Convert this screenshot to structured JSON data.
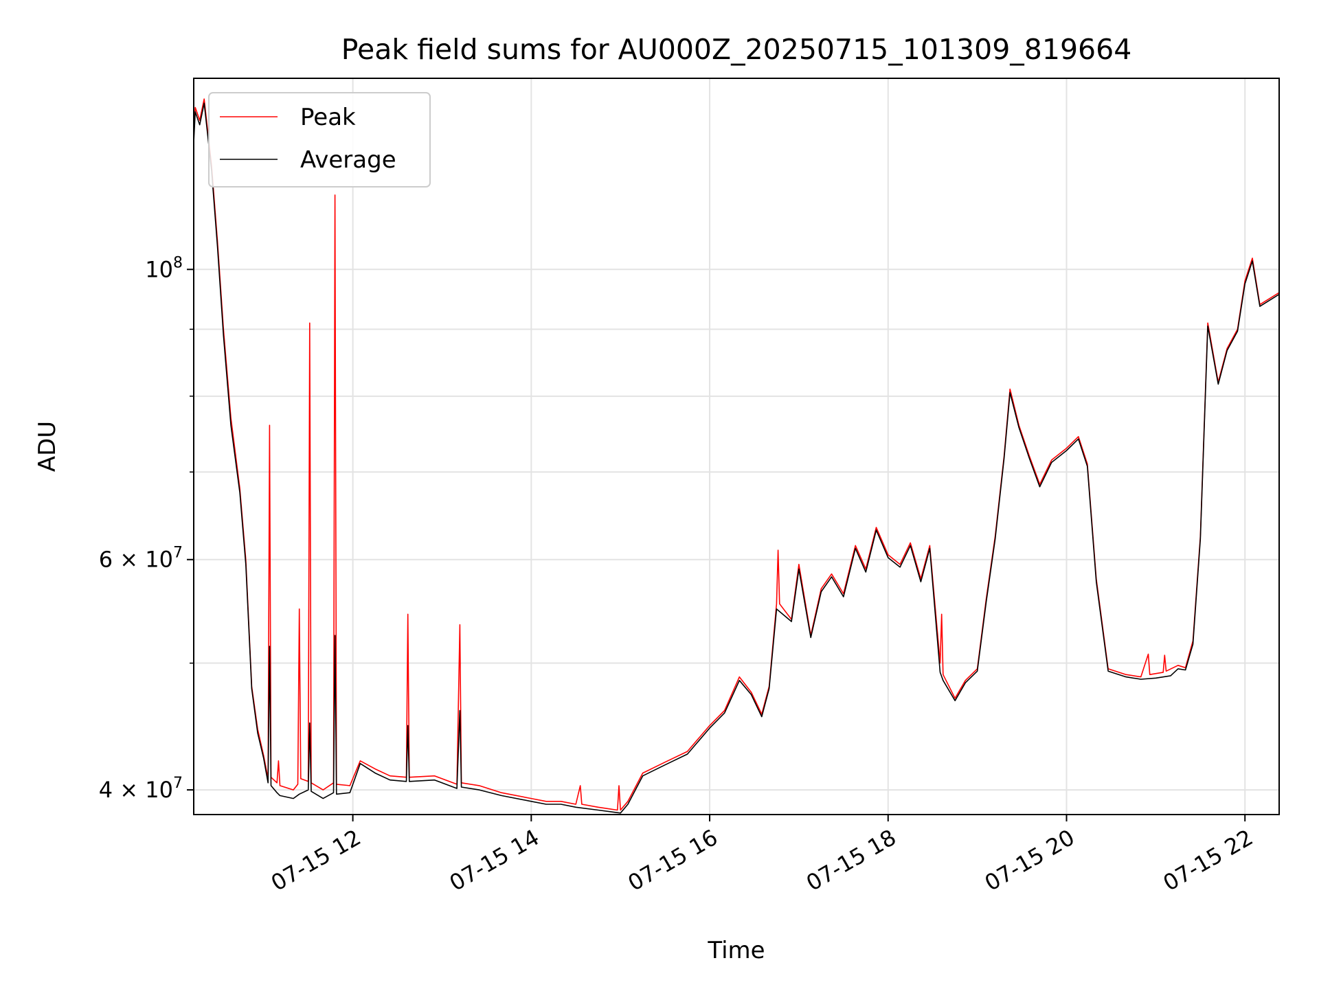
{
  "chart_data": {
    "type": "line",
    "title": "Peak field sums for AU000Z_20250715_101309_819664",
    "xlabel": "Time",
    "ylabel": "ADU",
    "y_scale": "log",
    "ylim": [
      38300000,
      140000000
    ],
    "x_range": [
      "2025-07-15 10:13",
      "2025-07-15 22:23"
    ],
    "x_ticks": [
      {
        "label": "07-15 12",
        "value": "2025-07-15 12:00"
      },
      {
        "label": "07-15 14",
        "value": "2025-07-15 14:00"
      },
      {
        "label": "07-15 16",
        "value": "2025-07-15 16:00"
      },
      {
        "label": "07-15 18",
        "value": "2025-07-15 18:00"
      },
      {
        "label": "07-15 20",
        "value": "2025-07-15 20:00"
      },
      {
        "label": "07-15 22",
        "value": "2025-07-15 22:00"
      }
    ],
    "y_major_ticks": [
      {
        "label_base": "4 × 10",
        "label_exp": "7",
        "value": 40000000
      },
      {
        "label_base": "6 × 10",
        "label_exp": "7",
        "value": 60000000
      },
      {
        "label_base": "10",
        "label_exp": "8",
        "value": 100000000
      }
    ],
    "y_minor_ticks": [
      50000000,
      70000000,
      80000000,
      90000000
    ],
    "grid": true,
    "legend_position": "top-left",
    "series": [
      {
        "name": "Peak",
        "color": "#ff0000",
        "points": [
          [
            "2025-07-15 10:13",
            126000000
          ],
          [
            "2025-07-15 10:14",
            133000000
          ],
          [
            "2025-07-15 10:17",
            130000000
          ],
          [
            "2025-07-15 10:20",
            135000000
          ],
          [
            "2025-07-15 10:25",
            120000000
          ],
          [
            "2025-07-15 10:29",
            105000000
          ],
          [
            "2025-07-15 10:33",
            90000000
          ],
          [
            "2025-07-15 10:38",
            77000000
          ],
          [
            "2025-07-15 10:44",
            68000000
          ],
          [
            "2025-07-15 10:48",
            60000000
          ],
          [
            "2025-07-15 10:52",
            48000000
          ],
          [
            "2025-07-15 10:56",
            44500000
          ],
          [
            "2025-07-15 11:00",
            42500000
          ],
          [
            "2025-07-15 11:03",
            40800000
          ],
          [
            "2025-07-15 11:04",
            76000000
          ],
          [
            "2025-07-15 11:05",
            40900000
          ],
          [
            "2025-07-15 11:09",
            40500000
          ],
          [
            "2025-07-15 11:10",
            42100000
          ],
          [
            "2025-07-15 11:11",
            40300000
          ],
          [
            "2025-07-15 11:20",
            40000000
          ],
          [
            "2025-07-15 11:23",
            40400000
          ],
          [
            "2025-07-15 11:24",
            55000000
          ],
          [
            "2025-07-15 11:25",
            40800000
          ],
          [
            "2025-07-15 11:30",
            40600000
          ],
          [
            "2025-07-15 11:31",
            91000000
          ],
          [
            "2025-07-15 11:32",
            40500000
          ],
          [
            "2025-07-15 11:40",
            40000000
          ],
          [
            "2025-07-15 11:47",
            40500000
          ],
          [
            "2025-07-15 11:48",
            114000000
          ],
          [
            "2025-07-15 11:49",
            40400000
          ],
          [
            "2025-07-15 11:58",
            40300000
          ],
          [
            "2025-07-15 12:05",
            42100000
          ],
          [
            "2025-07-15 12:15",
            41500000
          ],
          [
            "2025-07-15 12:25",
            41000000
          ],
          [
            "2025-07-15 12:36",
            40900000
          ],
          [
            "2025-07-15 12:37",
            54500000
          ],
          [
            "2025-07-15 12:38",
            40900000
          ],
          [
            "2025-07-15 12:55",
            41000000
          ],
          [
            "2025-07-15 13:10",
            40400000
          ],
          [
            "2025-07-15 13:12",
            53500000
          ],
          [
            "2025-07-15 13:13",
            40500000
          ],
          [
            "2025-07-15 13:25",
            40300000
          ],
          [
            "2025-07-15 13:40",
            39800000
          ],
          [
            "2025-07-15 14:00",
            39400000
          ],
          [
            "2025-07-15 14:10",
            39200000
          ],
          [
            "2025-07-15 14:20",
            39200000
          ],
          [
            "2025-07-15 14:30",
            39000000
          ],
          [
            "2025-07-15 14:33",
            40300000
          ],
          [
            "2025-07-15 14:34",
            39000000
          ],
          [
            "2025-07-15 14:45",
            38800000
          ],
          [
            "2025-07-15 14:58",
            38600000
          ],
          [
            "2025-07-15 14:59",
            40300000
          ],
          [
            "2025-07-15 15:00",
            38600000
          ],
          [
            "2025-07-15 15:05",
            39200000
          ],
          [
            "2025-07-15 15:15",
            41200000
          ],
          [
            "2025-07-15 15:30",
            42000000
          ],
          [
            "2025-07-15 15:45",
            42800000
          ],
          [
            "2025-07-15 16:00",
            44800000
          ],
          [
            "2025-07-15 16:10",
            46000000
          ],
          [
            "2025-07-15 16:20",
            48800000
          ],
          [
            "2025-07-15 16:28",
            47500000
          ],
          [
            "2025-07-15 16:35",
            45700000
          ],
          [
            "2025-07-15 16:40",
            48000000
          ],
          [
            "2025-07-15 16:45",
            55500000
          ],
          [
            "2025-07-15 16:46",
            61000000
          ],
          [
            "2025-07-15 16:47",
            55500000
          ],
          [
            "2025-07-15 16:55",
            54000000
          ],
          [
            "2025-07-15 17:00",
            59500000
          ],
          [
            "2025-07-15 17:08",
            52500000
          ],
          [
            "2025-07-15 17:15",
            57000000
          ],
          [
            "2025-07-15 17:22",
            58500000
          ],
          [
            "2025-07-15 17:30",
            56500000
          ],
          [
            "2025-07-15 17:38",
            61500000
          ],
          [
            "2025-07-15 17:45",
            59000000
          ],
          [
            "2025-07-15 17:52",
            63500000
          ],
          [
            "2025-07-15 18:00",
            60500000
          ],
          [
            "2025-07-15 18:08",
            59500000
          ],
          [
            "2025-07-15 18:15",
            61800000
          ],
          [
            "2025-07-15 18:22",
            58000000
          ],
          [
            "2025-07-15 18:28",
            61500000
          ],
          [
            "2025-07-15 18:35",
            50000000
          ],
          [
            "2025-07-15 18:36",
            54500000
          ],
          [
            "2025-07-15 18:37",
            49000000
          ],
          [
            "2025-07-15 18:45",
            47000000
          ],
          [
            "2025-07-15 18:52",
            48500000
          ],
          [
            "2025-07-15 19:00",
            49500000
          ],
          [
            "2025-07-15 19:06",
            56000000
          ],
          [
            "2025-07-15 19:12",
            62500000
          ],
          [
            "2025-07-15 19:18",
            72000000
          ],
          [
            "2025-07-15 19:22",
            81000000
          ],
          [
            "2025-07-15 19:28",
            76000000
          ],
          [
            "2025-07-15 19:35",
            72000000
          ],
          [
            "2025-07-15 19:42",
            68500000
          ],
          [
            "2025-07-15 19:50",
            71500000
          ],
          [
            "2025-07-15 20:00",
            73000000
          ],
          [
            "2025-07-15 20:08",
            74500000
          ],
          [
            "2025-07-15 20:14",
            71000000
          ],
          [
            "2025-07-15 20:20",
            58000000
          ],
          [
            "2025-07-15 20:28",
            49500000
          ],
          [
            "2025-07-15 20:40",
            49000000
          ],
          [
            "2025-07-15 20:50",
            48800000
          ],
          [
            "2025-07-15 20:55",
            50800000
          ],
          [
            "2025-07-15 20:56",
            49000000
          ],
          [
            "2025-07-15 21:05",
            49200000
          ],
          [
            "2025-07-15 21:06",
            50700000
          ],
          [
            "2025-07-15 21:07",
            49300000
          ],
          [
            "2025-07-15 21:15",
            49800000
          ],
          [
            "2025-07-15 21:20",
            49600000
          ],
          [
            "2025-07-15 21:25",
            52000000
          ],
          [
            "2025-07-15 21:30",
            62500000
          ],
          [
            "2025-07-15 21:35",
            91000000
          ],
          [
            "2025-07-15 21:42",
            82000000
          ],
          [
            "2025-07-15 21:48",
            87000000
          ],
          [
            "2025-07-15 21:55",
            90000000
          ],
          [
            "2025-07-15 22:00",
            98000000
          ],
          [
            "2025-07-15 22:05",
            102000000
          ],
          [
            "2025-07-15 22:10",
            94000000
          ],
          [
            "2025-07-15 22:23",
            96000000
          ]
        ]
      },
      {
        "name": "Average",
        "color": "#000000",
        "points": [
          [
            "2025-07-15 10:13",
            125000000
          ],
          [
            "2025-07-15 10:14",
            132000000
          ],
          [
            "2025-07-15 10:17",
            129000000
          ],
          [
            "2025-07-15 10:20",
            134000000
          ],
          [
            "2025-07-15 10:25",
            119000000
          ],
          [
            "2025-07-15 10:29",
            104000000
          ],
          [
            "2025-07-15 10:33",
            89000000
          ],
          [
            "2025-07-15 10:38",
            76000000
          ],
          [
            "2025-07-15 10:44",
            67500000
          ],
          [
            "2025-07-15 10:48",
            59500000
          ],
          [
            "2025-07-15 10:52",
            47800000
          ],
          [
            "2025-07-15 10:56",
            44200000
          ],
          [
            "2025-07-15 11:00",
            42300000
          ],
          [
            "2025-07-15 11:03",
            40500000
          ],
          [
            "2025-07-15 11:04",
            51500000
          ],
          [
            "2025-07-15 11:05",
            40300000
          ],
          [
            "2025-07-15 11:09",
            39800000
          ],
          [
            "2025-07-15 11:11",
            39600000
          ],
          [
            "2025-07-15 11:20",
            39400000
          ],
          [
            "2025-07-15 11:24",
            39700000
          ],
          [
            "2025-07-15 11:30",
            40000000
          ],
          [
            "2025-07-15 11:31",
            45000000
          ],
          [
            "2025-07-15 11:32",
            39900000
          ],
          [
            "2025-07-15 11:40",
            39400000
          ],
          [
            "2025-07-15 11:47",
            39800000
          ],
          [
            "2025-07-15 11:48",
            52500000
          ],
          [
            "2025-07-15 11:49",
            39700000
          ],
          [
            "2025-07-15 11:58",
            39800000
          ],
          [
            "2025-07-15 12:05",
            41900000
          ],
          [
            "2025-07-15 12:15",
            41200000
          ],
          [
            "2025-07-15 12:25",
            40700000
          ],
          [
            "2025-07-15 12:36",
            40600000
          ],
          [
            "2025-07-15 12:37",
            44800000
          ],
          [
            "2025-07-15 12:38",
            40600000
          ],
          [
            "2025-07-15 12:55",
            40700000
          ],
          [
            "2025-07-15 13:10",
            40100000
          ],
          [
            "2025-07-15 13:12",
            46000000
          ],
          [
            "2025-07-15 13:13",
            40200000
          ],
          [
            "2025-07-15 13:25",
            40000000
          ],
          [
            "2025-07-15 13:40",
            39600000
          ],
          [
            "2025-07-15 14:00",
            39200000
          ],
          [
            "2025-07-15 14:10",
            39000000
          ],
          [
            "2025-07-15 14:20",
            39000000
          ],
          [
            "2025-07-15 14:30",
            38800000
          ],
          [
            "2025-07-15 14:45",
            38600000
          ],
          [
            "2025-07-15 15:00",
            38400000
          ],
          [
            "2025-07-15 15:05",
            39000000
          ],
          [
            "2025-07-15 15:15",
            41000000
          ],
          [
            "2025-07-15 15:30",
            41800000
          ],
          [
            "2025-07-15 15:45",
            42600000
          ],
          [
            "2025-07-15 16:00",
            44600000
          ],
          [
            "2025-07-15 16:10",
            45800000
          ],
          [
            "2025-07-15 16:20",
            48500000
          ],
          [
            "2025-07-15 16:28",
            47300000
          ],
          [
            "2025-07-15 16:35",
            45500000
          ],
          [
            "2025-07-15 16:40",
            47800000
          ],
          [
            "2025-07-15 16:45",
            55000000
          ],
          [
            "2025-07-15 16:55",
            53800000
          ],
          [
            "2025-07-15 17:00",
            59000000
          ],
          [
            "2025-07-15 17:08",
            52300000
          ],
          [
            "2025-07-15 17:15",
            56700000
          ],
          [
            "2025-07-15 17:22",
            58200000
          ],
          [
            "2025-07-15 17:30",
            56200000
          ],
          [
            "2025-07-15 17:38",
            61200000
          ],
          [
            "2025-07-15 17:45",
            58700000
          ],
          [
            "2025-07-15 17:52",
            63200000
          ],
          [
            "2025-07-15 18:00",
            60200000
          ],
          [
            "2025-07-15 18:08",
            59200000
          ],
          [
            "2025-07-15 18:15",
            61500000
          ],
          [
            "2025-07-15 18:22",
            57700000
          ],
          [
            "2025-07-15 18:28",
            61200000
          ],
          [
            "2025-07-15 18:35",
            49200000
          ],
          [
            "2025-07-15 18:37",
            48500000
          ],
          [
            "2025-07-15 18:45",
            46800000
          ],
          [
            "2025-07-15 18:52",
            48300000
          ],
          [
            "2025-07-15 19:00",
            49300000
          ],
          [
            "2025-07-15 19:06",
            55700000
          ],
          [
            "2025-07-15 19:12",
            62200000
          ],
          [
            "2025-07-15 19:18",
            71700000
          ],
          [
            "2025-07-15 19:22",
            80500000
          ],
          [
            "2025-07-15 19:28",
            75700000
          ],
          [
            "2025-07-15 19:35",
            71700000
          ],
          [
            "2025-07-15 19:42",
            68200000
          ],
          [
            "2025-07-15 19:50",
            71200000
          ],
          [
            "2025-07-15 20:00",
            72700000
          ],
          [
            "2025-07-15 20:08",
            74200000
          ],
          [
            "2025-07-15 20:14",
            70700000
          ],
          [
            "2025-07-15 20:20",
            57700000
          ],
          [
            "2025-07-15 20:28",
            49300000
          ],
          [
            "2025-07-15 20:40",
            48800000
          ],
          [
            "2025-07-15 20:50",
            48600000
          ],
          [
            "2025-07-15 21:00",
            48700000
          ],
          [
            "2025-07-15 21:10",
            48900000
          ],
          [
            "2025-07-15 21:15",
            49500000
          ],
          [
            "2025-07-15 21:20",
            49400000
          ],
          [
            "2025-07-15 21:25",
            51700000
          ],
          [
            "2025-07-15 21:30",
            62200000
          ],
          [
            "2025-07-15 21:35",
            90500000
          ],
          [
            "2025-07-15 21:42",
            81700000
          ],
          [
            "2025-07-15 21:48",
            86700000
          ],
          [
            "2025-07-15 21:55",
            89700000
          ],
          [
            "2025-07-15 22:00",
            97500000
          ],
          [
            "2025-07-15 22:05",
            101500000
          ],
          [
            "2025-07-15 22:10",
            93700000
          ],
          [
            "2025-07-15 22:23",
            95700000
          ]
        ]
      }
    ]
  }
}
